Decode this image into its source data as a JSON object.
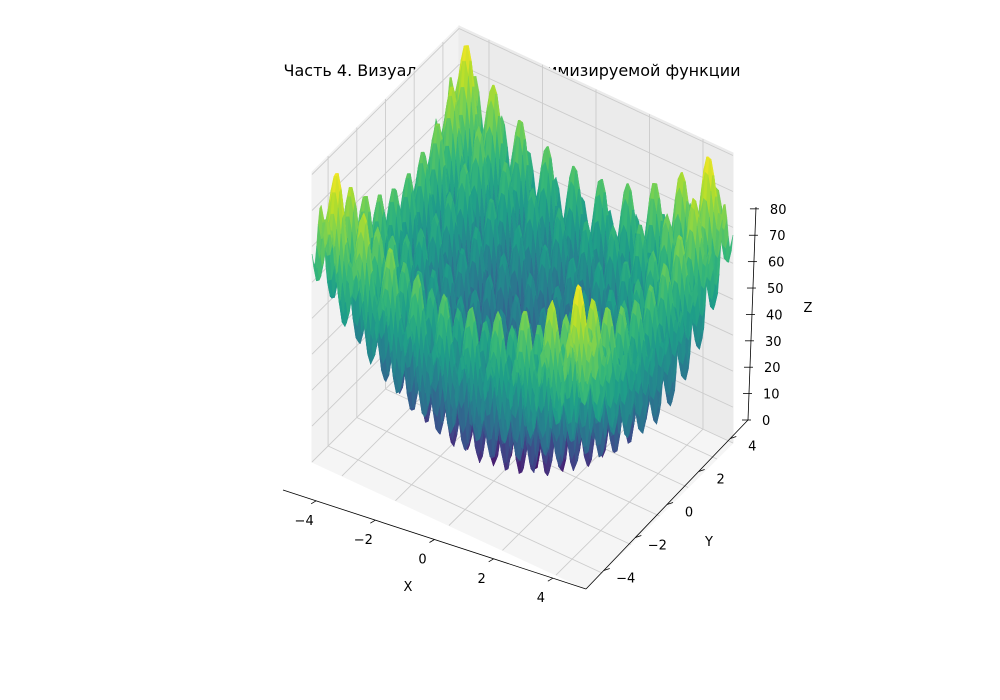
{
  "chart_data": {
    "type": "surface3d",
    "title": "Часть 4. Визуализация для оптимизируемой функции",
    "xlabel": "X",
    "ylabel": "Y",
    "zlabel": "Z",
    "xlim": [
      -5.12,
      5.12
    ],
    "ylim": [
      -5.12,
      5.12
    ],
    "zlim": [
      0,
      80.7
    ],
    "x_ticks": [
      -4,
      -2,
      0,
      2,
      4
    ],
    "y_ticks": [
      -4,
      -2,
      0,
      2,
      4
    ],
    "z_ticks": [
      0,
      10,
      20,
      30,
      40,
      50,
      60,
      70,
      80
    ],
    "x_tick_labels": [
      "−4",
      "−2",
      "0",
      "2",
      "4"
    ],
    "y_tick_labels": [
      "−4",
      "−2",
      "0",
      "2",
      "4"
    ],
    "z_tick_labels": [
      "0",
      "10",
      "20",
      "30",
      "40",
      "50",
      "60",
      "70",
      "80"
    ],
    "function": "Z = 20 + X^2 + Y^2 - 10*(cos(2*pi*X) + cos(2*pi*Y))",
    "colormap": "viridis",
    "colormap_stops": [
      "#440154",
      "#482878",
      "#3e4989",
      "#31688e",
      "#26828e",
      "#1f9e89",
      "#35b779",
      "#6ece58",
      "#b5de2b",
      "#fde725"
    ],
    "grid": true,
    "pane_color": "#f2f2f2",
    "grid_color": "#cccccc"
  }
}
